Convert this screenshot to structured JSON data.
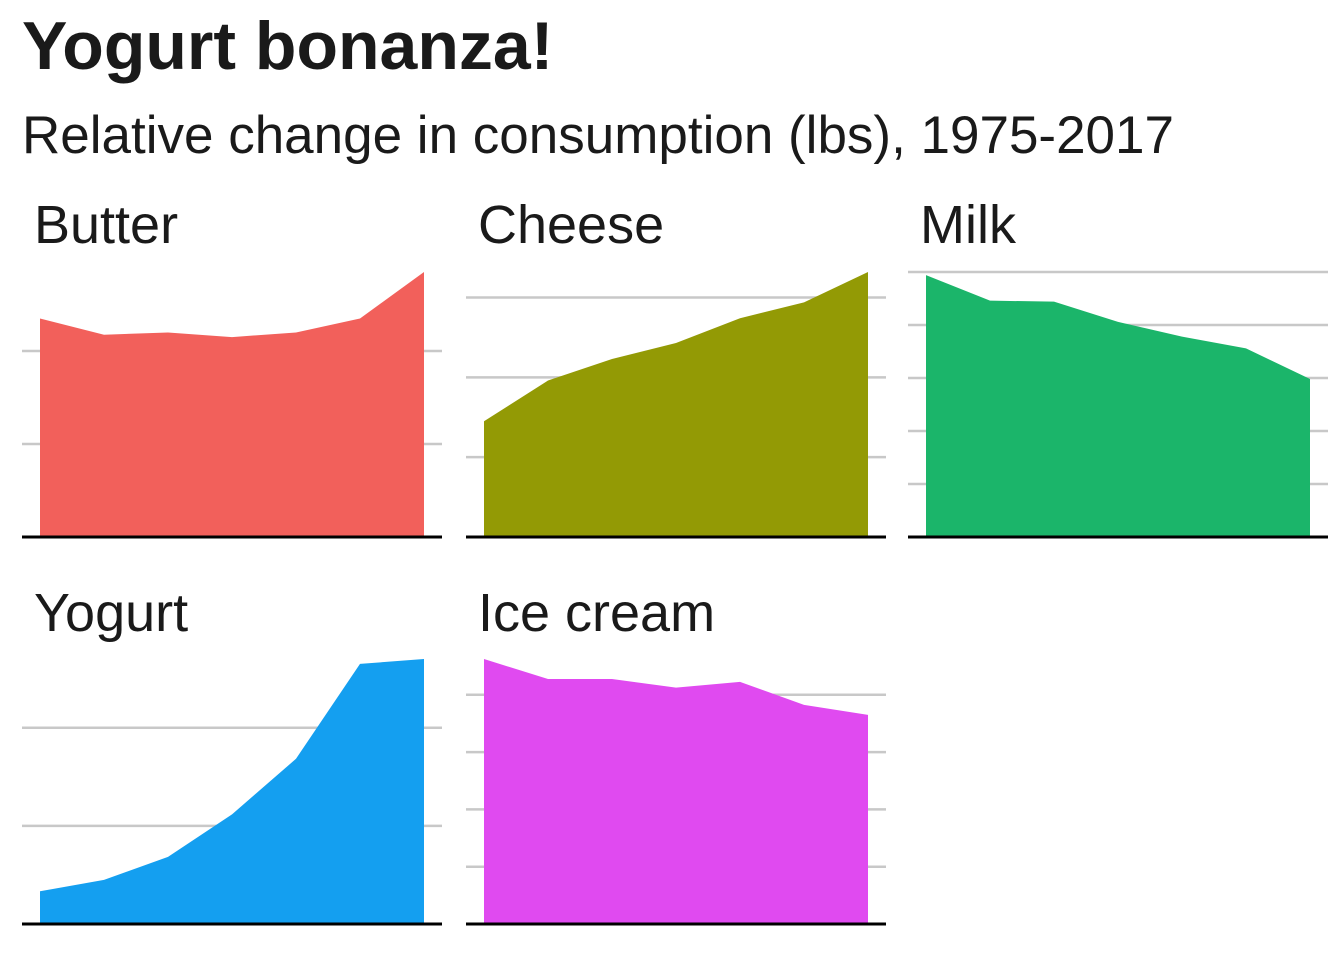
{
  "title": "Yogurt bonanza!",
  "subtitle": "Relative change in consumption (lbs), 1975-2017",
  "colors": {
    "Butter": "#F2605B",
    "Cheese": "#939A05",
    "Milk": "#1BB56A",
    "Yogurt": "#149FF0",
    "Ice cream": "#E04AF0",
    "gridline": "#c8c8c8",
    "baseline": "#000000"
  },
  "chart_data": {
    "type": "area",
    "facets": [
      "Butter",
      "Cheese",
      "Milk",
      "Yogurt",
      "Ice cream"
    ],
    "x": [
      1975,
      1982,
      1989,
      1996,
      2003,
      2010,
      2017
    ],
    "grid": "horizontal major gridlines, no axis labels",
    "series": [
      {
        "name": "Butter",
        "values": [
          4.7,
          4.35,
          4.4,
          4.3,
          4.4,
          4.7,
          5.7
        ],
        "ylim": [
          0,
          5.7
        ],
        "gridlines": [
          2,
          4
        ]
      },
      {
        "name": "Cheese",
        "values": [
          14.5,
          19.6,
          22.3,
          24.3,
          27.4,
          29.4,
          33.2
        ],
        "ylim": [
          0,
          33.2
        ],
        "gridlines": [
          10,
          20,
          30,
          40
        ]
      },
      {
        "name": "Milk",
        "values": [
          247,
          223,
          222,
          203,
          189,
          178,
          149
        ],
        "ylim": [
          0,
          250
        ],
        "gridlines": [
          50,
          100,
          150,
          200,
          250
        ]
      },
      {
        "name": "Yogurt",
        "values": [
          2.0,
          2.7,
          4.1,
          6.7,
          10.1,
          15.9,
          16.2
        ],
        "ylim": [
          0,
          16.2
        ],
        "gridlines": [
          6,
          12
        ]
      },
      {
        "name": "Ice cream",
        "values": [
          18.5,
          17.1,
          17.1,
          16.5,
          16.9,
          15.3,
          14.6
        ],
        "ylim": [
          0,
          18.5
        ],
        "gridlines": [
          4,
          8,
          12,
          16,
          20
        ]
      }
    ]
  }
}
